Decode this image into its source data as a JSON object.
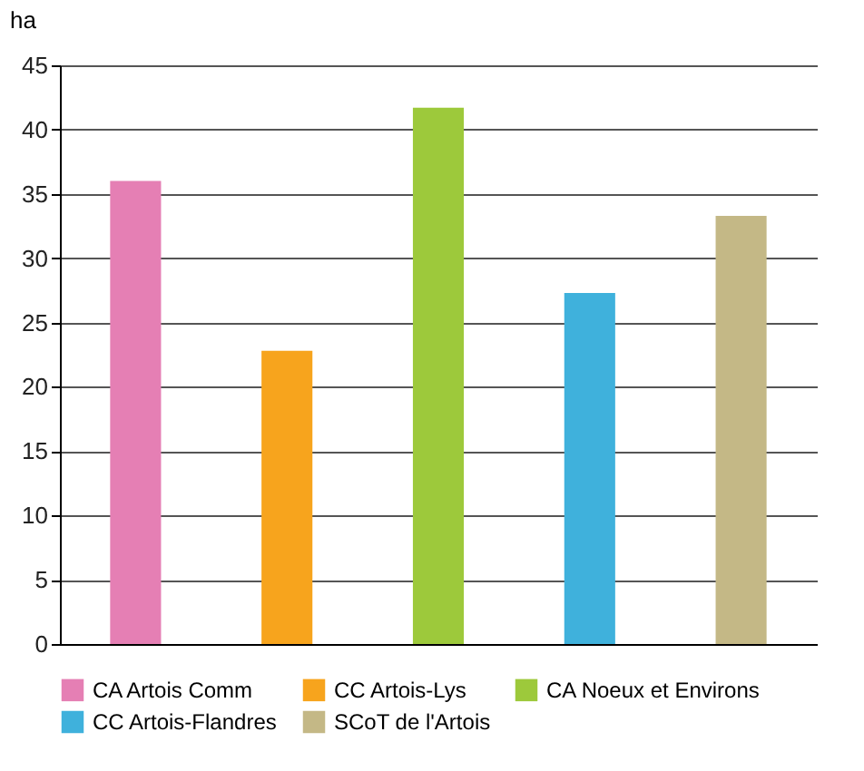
{
  "chart_data": {
    "type": "bar",
    "ylabel": "ha",
    "categories": [
      null,
      null,
      null,
      null,
      null
    ],
    "series": [
      {
        "name": "CA Artois Comm",
        "color": "#e57fb4",
        "values": [
          36,
          null,
          null,
          null,
          null
        ]
      },
      {
        "name": "CC Artois-Lys",
        "color": "#f7a41d",
        "values": [
          null,
          22.8,
          null,
          null,
          null
        ]
      },
      {
        "name": "CA Noeux et Environs",
        "color": "#9dc93b",
        "values": [
          null,
          null,
          41.7,
          null,
          null
        ]
      },
      {
        "name": "CC Artois-Flandres",
        "color": "#3fb1dc",
        "values": [
          null,
          null,
          null,
          27.3,
          null
        ]
      },
      {
        "name": "SCoT de l'Artois",
        "color": "#c4b886",
        "values": [
          null,
          null,
          null,
          null,
          33.3
        ]
      }
    ],
    "ylim": [
      0,
      45
    ],
    "yticks": [
      0,
      5,
      10,
      15,
      20,
      25,
      30,
      35,
      40,
      45
    ],
    "grid": "y",
    "legend": "bottom",
    "tick_labels": "y"
  }
}
